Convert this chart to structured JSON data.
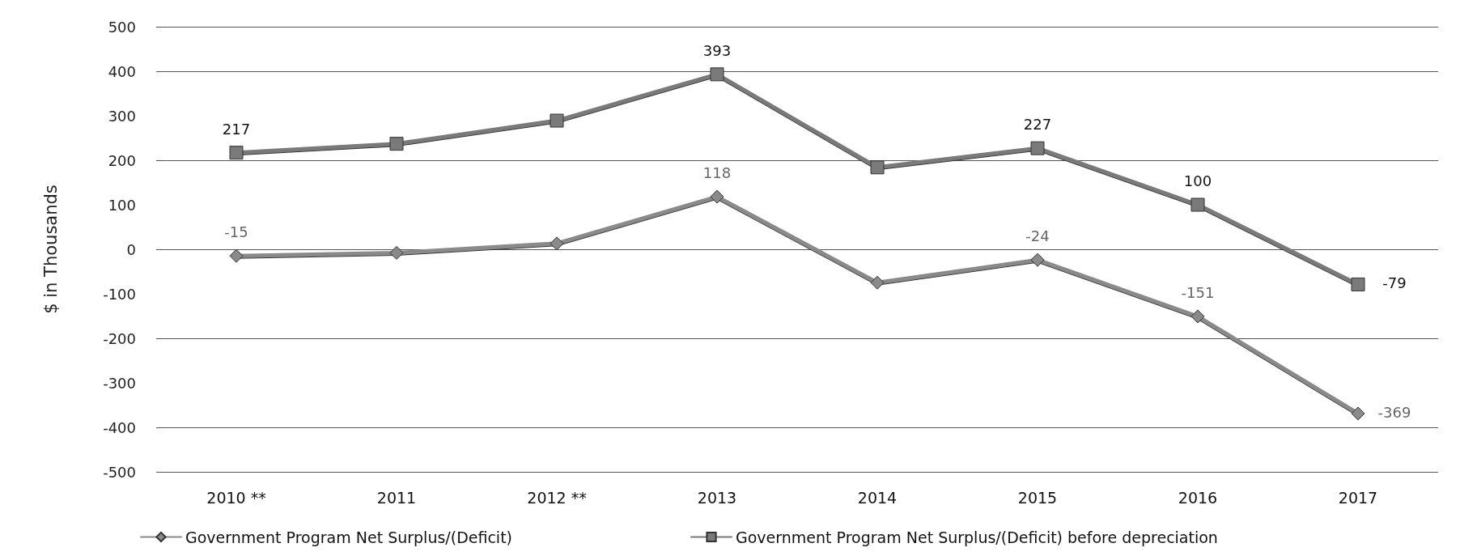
{
  "chart_data": {
    "type": "line",
    "ylabel": "$ in Thousands",
    "categories": [
      "2010 **",
      "2011",
      "2012 **",
      "2013",
      "2014",
      "2015",
      "2016",
      "2017"
    ],
    "series": [
      {
        "name": "Government Program Net Surplus/(Deficit)",
        "color": "#8a8a8a",
        "marker": "diamond",
        "values": [
          -15,
          -8,
          13,
          118,
          -75,
          -24,
          -151,
          -369
        ],
        "value_labels": [
          "-15",
          null,
          null,
          "118",
          null,
          "-24",
          "-151",
          "-369"
        ]
      },
      {
        "name": "Government Program Net Surplus/(Deficit) before depreciation",
        "color": "#7a7a7a",
        "marker": "square",
        "values": [
          217,
          237,
          289,
          393,
          184,
          227,
          100,
          -79
        ],
        "value_labels": [
          "217",
          null,
          null,
          "393",
          null,
          "227",
          "100",
          "-79"
        ]
      }
    ],
    "ylim": [
      -500,
      500
    ],
    "yticks": [
      -500,
      -400,
      -300,
      -200,
      -100,
      0,
      100,
      200,
      300,
      400,
      500
    ],
    "grid": "y",
    "legend": "bottom",
    "line_style": "solid"
  }
}
